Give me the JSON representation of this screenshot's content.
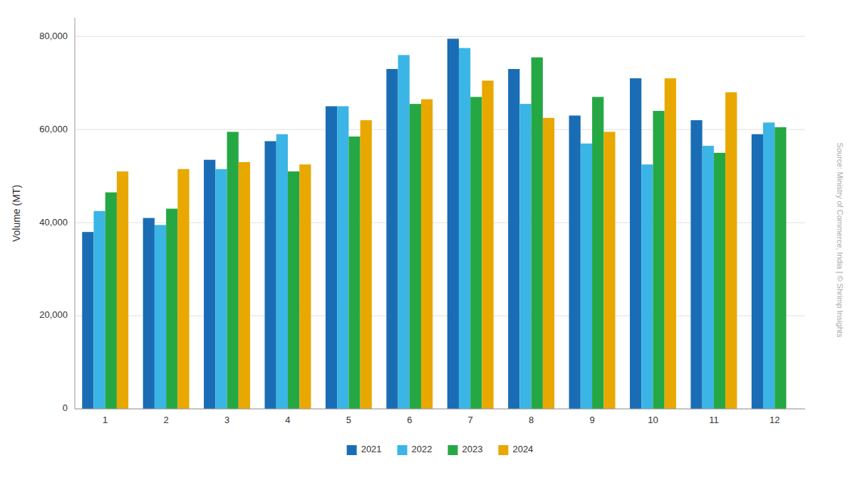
{
  "chart_data": {
    "type": "bar",
    "categories": [
      "1",
      "2",
      "3",
      "4",
      "5",
      "6",
      "7",
      "8",
      "9",
      "10",
      "11",
      "12"
    ],
    "series": [
      {
        "name": "2021",
        "color": "#1A6DB5",
        "values": [
          38000,
          41000,
          53500,
          57500,
          65000,
          73000,
          79500,
          73000,
          63000,
          71000,
          62000,
          59000
        ]
      },
      {
        "name": "2022",
        "color": "#3AB5E5",
        "values": [
          42500,
          39500,
          51500,
          59000,
          65000,
          76000,
          77500,
          65500,
          57000,
          52500,
          56500,
          61500
        ]
      },
      {
        "name": "2023",
        "color": "#25A844",
        "values": [
          46500,
          43000,
          59500,
          51000,
          58500,
          65500,
          67000,
          75500,
          67000,
          64000,
          55000,
          60500
        ]
      },
      {
        "name": "2024",
        "color": "#E8A800",
        "values": [
          51000,
          51500,
          53000,
          52500,
          62000,
          66500,
          70500,
          62500,
          59500,
          71000,
          68000,
          null
        ]
      }
    ],
    "y_label": "Volume (MT)",
    "ylim": [
      0,
      84000
    ],
    "yticks": [
      0,
      {
        "value": 20000,
        "label": "20,000"
      },
      {
        "value": 40000,
        "label": "40,000"
      },
      {
        "value": 60000,
        "label": "60,000"
      },
      {
        "value": 80000,
        "label": "80,000"
      }
    ],
    "grid": true,
    "legend": "bottom",
    "annotations": [
      "Source: Ministry of Commerce, India | © Shrimp Insights"
    ]
  }
}
